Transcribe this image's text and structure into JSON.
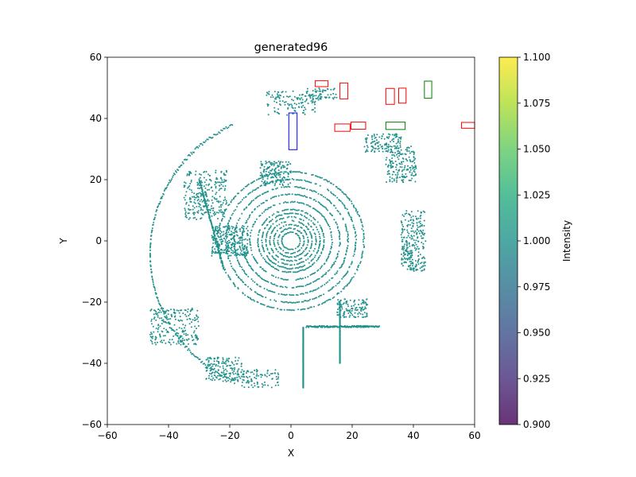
{
  "chart_data": {
    "type": "scatter",
    "title": "generated96",
    "xlabel": "X",
    "ylabel": "Y",
    "xlim": [
      -60,
      60
    ],
    "ylim": [
      -60,
      60
    ],
    "x_ticks": [
      -60,
      -40,
      -20,
      0,
      20,
      40,
      60
    ],
    "y_ticks": [
      -60,
      -40,
      -20,
      0,
      20,
      40,
      60
    ],
    "x_tick_labels": [
      "−60",
      "−40",
      "−20",
      "0",
      "20",
      "40",
      "60"
    ],
    "y_tick_labels": [
      "−60",
      "−40",
      "−20",
      "0",
      "20",
      "40",
      "60"
    ],
    "grid": false,
    "point_color": "#21918c",
    "colorbar": {
      "label": "Intensity",
      "range": [
        0.9,
        1.1
      ],
      "colormap": "viridis",
      "ticks": [
        "0.900",
        "0.925",
        "0.950",
        "0.975",
        "1.000",
        "1.025",
        "1.050",
        "1.075",
        "1.100"
      ]
    },
    "boxes": [
      {
        "color": "#0000ff",
        "x1": -0.7,
        "x2": 2.0,
        "y1": 29.8,
        "y2": 41.8
      },
      {
        "color": "#ff0000",
        "x1": 7.9,
        "x2": 12.1,
        "y1": 50.4,
        "y2": 52.3
      },
      {
        "color": "#ff0000",
        "x1": 16.0,
        "x2": 18.6,
        "y1": 46.4,
        "y2": 51.6
      },
      {
        "color": "#ff0000",
        "x1": 31.0,
        "x2": 33.8,
        "y1": 44.6,
        "y2": 49.8
      },
      {
        "color": "#ff0000",
        "x1": 35.2,
        "x2": 37.6,
        "y1": 45.0,
        "y2": 49.9
      },
      {
        "color": "#ff0000",
        "x1": 14.3,
        "x2": 19.3,
        "y1": 35.8,
        "y2": 38.2
      },
      {
        "color": "#ff0000",
        "x1": 19.6,
        "x2": 24.4,
        "y1": 36.5,
        "y2": 38.8
      },
      {
        "color": "#ff0000",
        "x1": 55.7,
        "x2": 60.0,
        "y1": 36.8,
        "y2": 38.7
      },
      {
        "color": "#008000",
        "x1": 31.0,
        "x2": 37.3,
        "y1": 36.4,
        "y2": 38.8
      },
      {
        "color": "#008000",
        "x1": 43.6,
        "x2": 46.0,
        "y1": 46.6,
        "y2": 52.2
      }
    ]
  }
}
